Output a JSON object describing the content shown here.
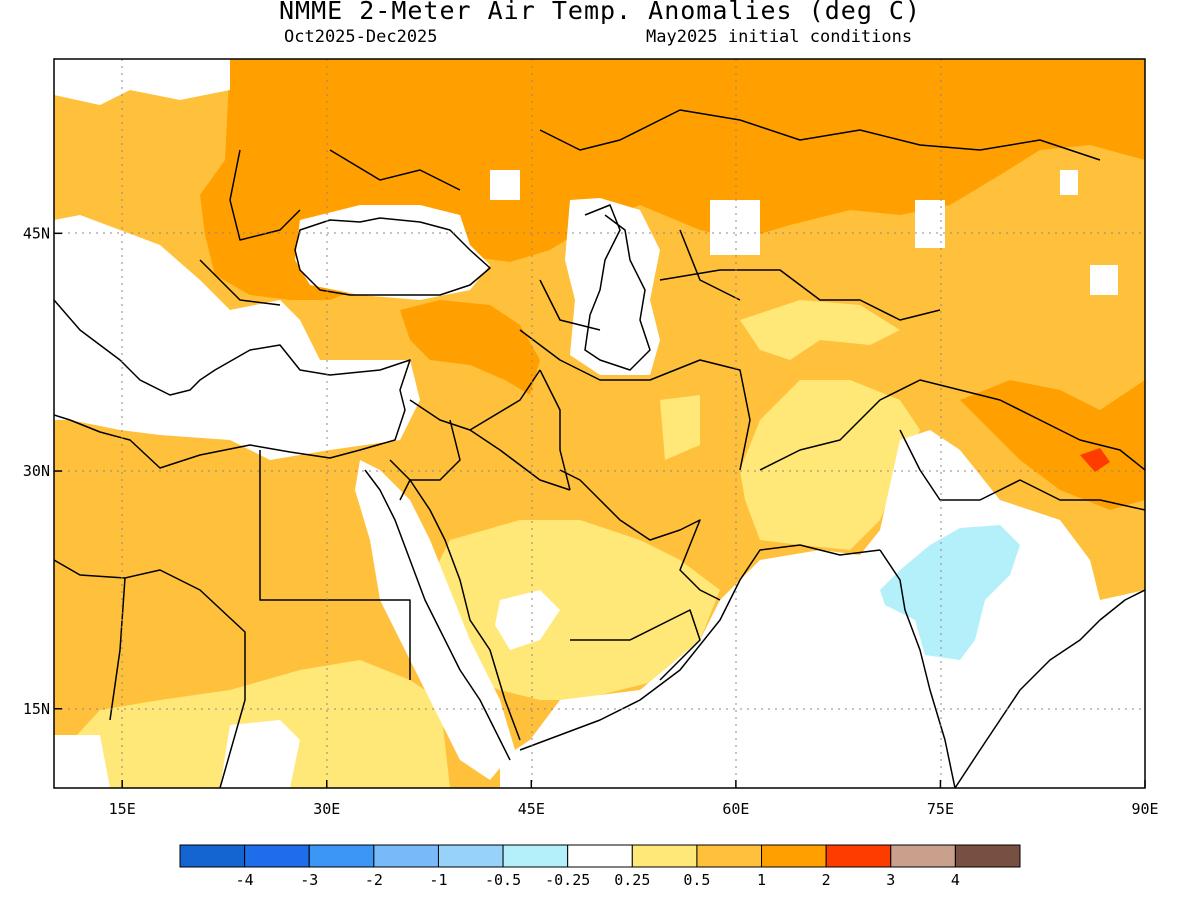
{
  "title": "NMME 2-Meter Air Temp. Anomalies (deg C)",
  "subtitle_left": "Oct2025-Dec2025",
  "subtitle_right": "May2025 initial conditions",
  "map": {
    "region": "Middle East and South Asia",
    "lon_range": [
      10,
      90
    ],
    "lat_range": [
      10,
      56
    ],
    "lon_ticks": [
      {
        "value": 15,
        "label": "15E"
      },
      {
        "value": 30,
        "label": "30E"
      },
      {
        "value": 45,
        "label": "45E"
      },
      {
        "value": 60,
        "label": "60E"
      },
      {
        "value": 75,
        "label": "75E"
      },
      {
        "value": 90,
        "label": "90E"
      }
    ],
    "lat_ticks": [
      {
        "value": 45,
        "label": "45N"
      },
      {
        "value": 30,
        "label": "30N"
      },
      {
        "value": 15,
        "label": "15N"
      }
    ],
    "grid": "dotted"
  },
  "colorbar": {
    "colors": [
      "#1464d2",
      "#1e6eeb",
      "#3c96f5",
      "#78b9fa",
      "#96d2fa",
      "#b4f0fa",
      "#ffffff",
      "#ffe878",
      "#ffc03c",
      "#ffa000",
      "#ff3c00",
      "#c8a08c",
      "#785041"
    ],
    "labels": [
      "-4",
      "-3",
      "-2",
      "-1",
      "-0.5",
      "-0.25",
      "0.25",
      "0.5",
      "1",
      "2",
      "3",
      "4"
    ]
  }
}
